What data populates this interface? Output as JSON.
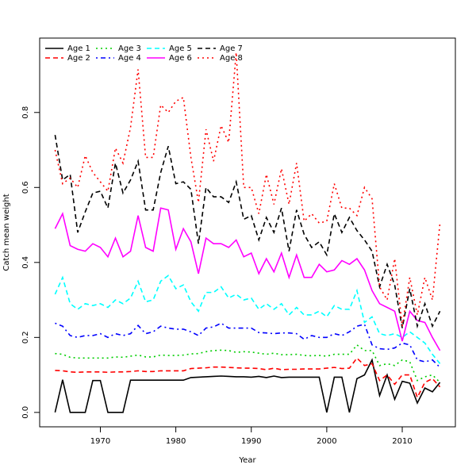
{
  "chart_data": {
    "type": "line",
    "xlabel": "Year",
    "ylabel": "Catch mean weight",
    "x": [
      1964,
      1965,
      1966,
      1967,
      1968,
      1969,
      1970,
      1971,
      1972,
      1973,
      1974,
      1975,
      1976,
      1977,
      1978,
      1979,
      1980,
      1981,
      1982,
      1983,
      1984,
      1985,
      1986,
      1987,
      1988,
      1989,
      1990,
      1991,
      1992,
      1993,
      1994,
      1995,
      1996,
      1997,
      1998,
      1999,
      2000,
      2001,
      2002,
      2003,
      2004,
      2005,
      2006,
      2007,
      2008,
      2009,
      2010,
      2011,
      2012,
      2013,
      2014,
      2015
    ],
    "series": [
      {
        "name": "Age 1",
        "color": "#000000",
        "dash": "solid",
        "values": [
          0,
          0.087,
          0,
          0,
          0,
          0.085,
          0.085,
          0,
          0,
          0,
          0.086,
          0.086,
          0.086,
          0.086,
          0.086,
          0.086,
          0.086,
          0.086,
          0.093,
          0.094,
          0.095,
          0.096,
          0.097,
          0.096,
          0.095,
          0.095,
          0.094,
          0.096,
          0.093,
          0.097,
          0.093,
          0.094,
          0.094,
          0.094,
          0.094,
          0.094,
          0,
          0.094,
          0.094,
          0,
          0.09,
          0.1,
          0.14,
          0.045,
          0.1,
          0.035,
          0.083,
          0.078,
          0.025,
          0.065,
          0.055,
          0.08
        ]
      },
      {
        "name": "Age 2",
        "color": "#ff0000",
        "dash": "dashed",
        "values": [
          0.112,
          0.111,
          0.108,
          0.107,
          0.108,
          0.108,
          0.108,
          0.107,
          0.108,
          0.108,
          0.109,
          0.111,
          0.109,
          0.109,
          0.111,
          0.111,
          0.111,
          0.111,
          0.117,
          0.118,
          0.119,
          0.121,
          0.121,
          0.12,
          0.119,
          0.118,
          0.118,
          0.117,
          0.114,
          0.118,
          0.114,
          0.115,
          0.115,
          0.116,
          0.116,
          0.116,
          0.118,
          0.12,
          0.117,
          0.118,
          0.145,
          0.125,
          0.13,
          0.085,
          0.1,
          0.075,
          0.1,
          0.1,
          0.04,
          0.08,
          0.09,
          0.068
        ]
      },
      {
        "name": "Age 3",
        "color": "#00cd00",
        "dash": "dotted",
        "values": [
          0.157,
          0.155,
          0.147,
          0.145,
          0.145,
          0.145,
          0.145,
          0.145,
          0.148,
          0.147,
          0.15,
          0.153,
          0.148,
          0.148,
          0.153,
          0.152,
          0.152,
          0.153,
          0.156,
          0.157,
          0.162,
          0.165,
          0.166,
          0.165,
          0.16,
          0.162,
          0.161,
          0.158,
          0.155,
          0.158,
          0.154,
          0.154,
          0.155,
          0.152,
          0.151,
          0.152,
          0.15,
          0.155,
          0.155,
          0.155,
          0.18,
          0.165,
          0.165,
          0.125,
          0.13,
          0.125,
          0.14,
          0.135,
          0.085,
          0.095,
          0.1,
          0.08
        ]
      },
      {
        "name": "Age 4",
        "color": "#0000ff",
        "dash": "dotdash",
        "values": [
          0.238,
          0.23,
          0.205,
          0.2,
          0.205,
          0.205,
          0.21,
          0.2,
          0.21,
          0.205,
          0.21,
          0.232,
          0.21,
          0.215,
          0.23,
          0.225,
          0.222,
          0.222,
          0.215,
          0.205,
          0.225,
          0.228,
          0.238,
          0.225,
          0.225,
          0.225,
          0.225,
          0.213,
          0.212,
          0.21,
          0.212,
          0.212,
          0.21,
          0.195,
          0.205,
          0.2,
          0.2,
          0.21,
          0.205,
          0.215,
          0.23,
          0.235,
          0.18,
          0.17,
          0.168,
          0.172,
          0.185,
          0.18,
          0.14,
          0.135,
          0.14,
          0.12
        ]
      },
      {
        "name": "Age 5",
        "color": "#00ffff",
        "dash": "dashed",
        "values": [
          0.315,
          0.36,
          0.29,
          0.275,
          0.29,
          0.285,
          0.29,
          0.28,
          0.3,
          0.29,
          0.305,
          0.35,
          0.295,
          0.3,
          0.35,
          0.365,
          0.33,
          0.34,
          0.295,
          0.27,
          0.32,
          0.32,
          0.335,
          0.305,
          0.315,
          0.3,
          0.305,
          0.275,
          0.29,
          0.275,
          0.29,
          0.26,
          0.28,
          0.26,
          0.26,
          0.27,
          0.255,
          0.285,
          0.275,
          0.275,
          0.325,
          0.24,
          0.255,
          0.21,
          0.205,
          0.21,
          0.2,
          0.215,
          0.2,
          0.185,
          0.155,
          0.13
        ]
      },
      {
        "name": "Age 6",
        "color": "#ff00ff",
        "dash": "solid",
        "values": [
          0.49,
          0.53,
          0.445,
          0.435,
          0.43,
          0.45,
          0.44,
          0.415,
          0.465,
          0.415,
          0.43,
          0.525,
          0.44,
          0.43,
          0.545,
          0.54,
          0.435,
          0.49,
          0.455,
          0.37,
          0.465,
          0.45,
          0.45,
          0.44,
          0.46,
          0.415,
          0.425,
          0.37,
          0.41,
          0.375,
          0.425,
          0.36,
          0.42,
          0.36,
          0.36,
          0.395,
          0.375,
          0.38,
          0.405,
          0.395,
          0.41,
          0.38,
          0.325,
          0.29,
          0.28,
          0.27,
          0.19,
          0.27,
          0.245,
          0.24,
          0.2,
          0.165
        ]
      },
      {
        "name": "Age 7",
        "color": "#000000",
        "dash": "dashed",
        "values": [
          0.74,
          0.62,
          0.635,
          0.48,
          0.535,
          0.585,
          0.59,
          0.545,
          0.665,
          0.585,
          0.62,
          0.67,
          0.54,
          0.54,
          0.64,
          0.71,
          0.61,
          0.615,
          0.595,
          0.45,
          0.6,
          0.575,
          0.575,
          0.56,
          0.615,
          0.515,
          0.525,
          0.46,
          0.52,
          0.48,
          0.545,
          0.43,
          0.54,
          0.475,
          0.44,
          0.455,
          0.42,
          0.53,
          0.48,
          0.52,
          0.485,
          0.46,
          0.43,
          0.335,
          0.395,
          0.34,
          0.225,
          0.33,
          0.23,
          0.29,
          0.23,
          0.27
        ]
      },
      {
        "name": "Age 8",
        "color": "#ff0000",
        "dash": "dotted",
        "values": [
          0.7,
          0.61,
          0.625,
          0.6,
          0.685,
          0.64,
          0.615,
          0.59,
          0.705,
          0.665,
          0.76,
          0.915,
          0.68,
          0.68,
          0.82,
          0.8,
          0.83,
          0.84,
          0.68,
          0.56,
          0.755,
          0.67,
          0.765,
          0.72,
          0.96,
          0.6,
          0.6,
          0.53,
          0.635,
          0.555,
          0.65,
          0.555,
          0.665,
          0.51,
          0.53,
          0.505,
          0.51,
          0.61,
          0.545,
          0.545,
          0.525,
          0.6,
          0.57,
          0.335,
          0.3,
          0.41,
          0.23,
          0.36,
          0.26,
          0.36,
          0.3,
          0.505
        ]
      }
    ],
    "xlim": [
      1961.96,
      2017.04
    ],
    "ylim": [
      -0.0384,
      0.9984
    ],
    "xticks": [
      1970,
      1980,
      1990,
      2000,
      2010
    ],
    "yticks": [
      {
        "value": 0,
        "label": "0.0"
      },
      0.2,
      0.4,
      0.6,
      0.8
    ],
    "legend": "top-left",
    "legend_columns": 4
  }
}
